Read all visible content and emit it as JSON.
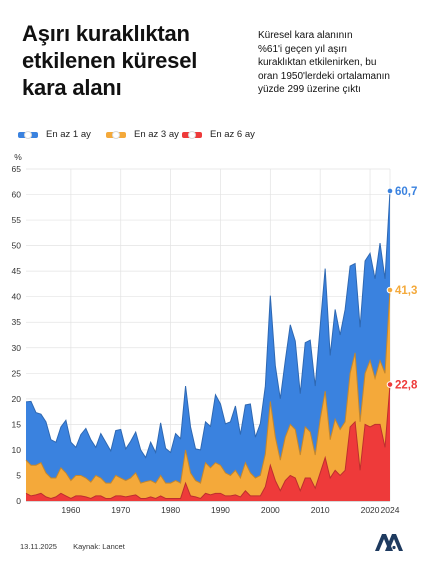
{
  "header": {
    "title": "Aşırı kuraklıktan\netkilenen küresel\nkara alanı",
    "subtitle": "Küresel kara alanının\n%61'i geçen yıl aşırı\nkuraklıktan etkilenirken, bu\noran 1950'lerdeki ortalamanın\nyüzde 299 üzerine çıktı"
  },
  "footer": {
    "date": "13.11.2025",
    "source": "Kaynak: Lancet"
  },
  "logo": {
    "text": "AA"
  },
  "chart_data": {
    "type": "area",
    "yunit": "%",
    "ylim": [
      0,
      65
    ],
    "yticks": [
      0,
      5,
      10,
      15,
      20,
      25,
      30,
      35,
      40,
      45,
      50,
      55,
      60,
      65
    ],
    "xticks": [
      "1960",
      "1970",
      "1980",
      "1990",
      "2000",
      "2010",
      "2020",
      "2024"
    ],
    "grid": true,
    "legend": "top-left",
    "x": [
      1951,
      1952,
      1953,
      1954,
      1955,
      1956,
      1957,
      1958,
      1959,
      1960,
      1961,
      1962,
      1963,
      1964,
      1965,
      1966,
      1967,
      1968,
      1969,
      1970,
      1971,
      1972,
      1973,
      1974,
      1975,
      1976,
      1977,
      1978,
      1979,
      1980,
      1981,
      1982,
      1983,
      1984,
      1985,
      1986,
      1987,
      1988,
      1989,
      1990,
      1991,
      1992,
      1993,
      1994,
      1995,
      1996,
      1997,
      1998,
      1999,
      2000,
      2001,
      2002,
      2003,
      2004,
      2005,
      2006,
      2007,
      2008,
      2009,
      2010,
      2011,
      2012,
      2013,
      2014,
      2015,
      2016,
      2017,
      2018,
      2019,
      2020,
      2021,
      2022,
      2023,
      2024
    ],
    "series": [
      {
        "name": "En az 1 ay",
        "color": "#3a82df",
        "values": [
          19.4,
          19.5,
          17.3,
          17,
          15.5,
          12,
          11.5,
          14.5,
          15.8,
          11.5,
          10.5,
          13,
          14.2,
          12,
          10.5,
          13.2,
          11.5,
          9.8,
          13.8,
          14,
          10.2,
          11.7,
          13.5,
          10,
          8.5,
          11.5,
          9.5,
          15.3,
          10.3,
          9.5,
          13.2,
          12.2,
          22.5,
          14.5,
          10.2,
          10,
          15.5,
          14.6,
          20.8,
          19,
          15.1,
          15.5,
          18.6,
          13,
          18.8,
          19,
          12.5,
          15.2,
          22.5,
          40.2,
          26.5,
          20,
          27.5,
          34.5,
          31.3,
          21,
          31,
          31.5,
          22.5,
          34.2,
          45.5,
          28.5,
          37.5,
          32.5,
          37.5,
          46,
          46.5,
          34,
          47,
          48.5,
          43.5,
          50.5,
          43.5,
          60.7
        ]
      },
      {
        "name": "En az 3 ay",
        "color": "#f4a93a",
        "values": [
          8,
          7,
          7,
          7.5,
          5.5,
          4.5,
          4.5,
          6.5,
          5.5,
          4,
          5,
          5,
          4.5,
          3.7,
          5,
          4.5,
          3.5,
          3.5,
          5,
          4.5,
          4,
          4.5,
          5.5,
          3.5,
          3.8,
          4,
          3.5,
          5,
          3.5,
          3.5,
          4,
          3.5,
          10,
          5.5,
          4,
          3.5,
          7.5,
          6.5,
          7.5,
          7,
          5.5,
          5,
          6,
          4.5,
          7.5,
          5.5,
          4.5,
          5,
          9.2,
          19.5,
          12.5,
          8,
          12.5,
          15,
          14,
          9,
          14.5,
          13.5,
          9,
          16,
          21.5,
          12,
          16,
          14,
          15.5,
          25,
          29,
          15.5,
          25,
          27.5,
          24,
          27.5,
          25,
          41.3
        ]
      },
      {
        "name": "En az 6 ay",
        "color": "#ee3a3a",
        "values": [
          1.5,
          1,
          1.2,
          1.5,
          0.8,
          0.5,
          0.8,
          1.5,
          1,
          0.5,
          1,
          1,
          0.8,
          0.5,
          1,
          1,
          0.5,
          0.5,
          1,
          1,
          0.8,
          1,
          1.2,
          0.5,
          0.5,
          0.8,
          0.5,
          1,
          0.5,
          0.5,
          0.5,
          0.5,
          3.5,
          1,
          0.8,
          0.5,
          1.5,
          1.2,
          1.5,
          1.5,
          1,
          1,
          1.2,
          0.8,
          2,
          1,
          1,
          1,
          2.8,
          7,
          4,
          2,
          4,
          5,
          4.5,
          2,
          4.5,
          4.5,
          2.5,
          5.5,
          8.5,
          4.5,
          6,
          5,
          6,
          14.5,
          15.5,
          6,
          15,
          14.5,
          15,
          15,
          10.5,
          22.8
        ]
      }
    ],
    "last_labels": [
      "60,7",
      "41,3",
      "22,8"
    ]
  }
}
